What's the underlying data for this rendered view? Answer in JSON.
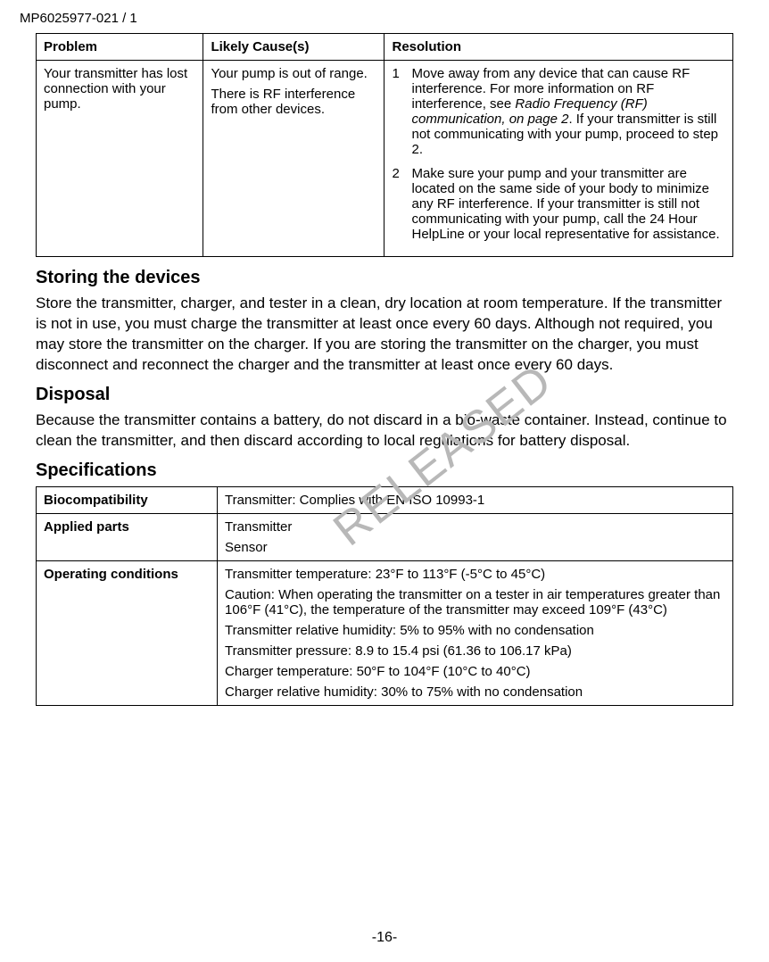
{
  "doc_id": "MP6025977-021 / 1",
  "watermark": "RELEASED",
  "page_number": "-16-",
  "troubleshoot_table": {
    "headers": [
      "Problem",
      "Likely Cause(s)",
      "Resolution"
    ],
    "row": {
      "problem": "Your transmitter has lost connection with your pump.",
      "cause1": "Your pump is out of range.",
      "cause2": "There is RF interference from other devices.",
      "res1_num": "1",
      "res1_a": "Move away from any device that can cause RF interference. For more information on RF interference, see ",
      "res1_italic": "Radio Frequency (RF) communication, on page 2",
      "res1_b": ". If your transmitter is still not communicating with your pump, proceed to step 2.",
      "res2_num": "2",
      "res2": "Make sure your pump and your transmitter are located on the same side of your body to minimize any RF interference. If your transmitter is still not communicating with your pump, call the 24 Hour HelpLine or your local representative for assistance."
    }
  },
  "sections": {
    "storing": {
      "title": "Storing the devices",
      "body": "Store the transmitter, charger, and tester in a clean, dry location at room temperature. If the transmitter is not in use, you must charge the transmitter at least once every 60 days. Although not required, you may store the transmitter on the charger. If you are storing the transmitter on the charger, you must disconnect and reconnect the charger and the transmitter at least once every 60 days."
    },
    "disposal": {
      "title": "Disposal",
      "body": "Because the transmitter contains a battery, do not discard in a bio-waste container. Instead, continue to clean the transmitter, and then discard according to local regulations for battery disposal."
    },
    "specs": {
      "title": "Specifications"
    }
  },
  "specs_table": {
    "biocompat": {
      "label": "Biocompatibility",
      "value": "Transmitter: Complies with EN ISO 10993-1"
    },
    "applied": {
      "label": "Applied parts",
      "v1": "Transmitter",
      "v2": "Sensor"
    },
    "operating": {
      "label": "Operating conditions",
      "v1": "Transmitter temperature: 23°F to 113°F (-5°C to 45°C)",
      "v2": "Caution: When operating the transmitter on a tester in air temperatures greater than 106°F (41°C), the temperature of the transmitter may exceed 109°F (43°C)",
      "v3": "Transmitter relative humidity: 5% to 95% with no condensation",
      "v4": "Transmitter pressure: 8.9 to 15.4 psi (61.36 to 106.17 kPa)",
      "v5": "Charger temperature: 50°F to 104°F (10°C to 40°C)",
      "v6": "Charger relative humidity: 30% to 75% with no condensation"
    }
  }
}
